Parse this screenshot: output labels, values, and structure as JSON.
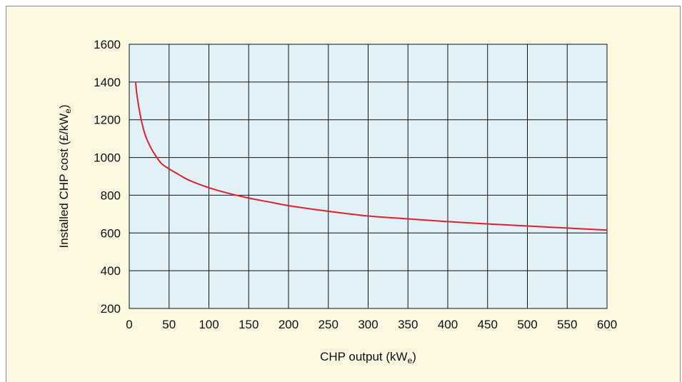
{
  "colors": {
    "panel_background": "#fdf8e1",
    "plot_background": "#e0f1f8",
    "grid": "#111111",
    "curve": "#e0202a"
  },
  "chart_data": {
    "type": "line",
    "xlabel": {
      "text": "CHP output (kW",
      "sub": "e",
      "suffix": ")"
    },
    "ylabel": {
      "text": "Installed CHP cost (£/kW",
      "sub": "e",
      "suffix": ")"
    },
    "xlim": [
      0,
      600
    ],
    "ylim": [
      200,
      1600
    ],
    "x_ticks": [
      "0",
      "50",
      "100",
      "150",
      "200",
      "250",
      "300",
      "350",
      "400",
      "450",
      "500",
      "550",
      "600"
    ],
    "y_ticks": [
      "200",
      "400",
      "600",
      "800",
      "1000",
      "1200",
      "1400",
      "1600"
    ],
    "grid": true,
    "series": [
      {
        "x": [
          8,
          10,
          15,
          20,
          25,
          30,
          40,
          50,
          60,
          75,
          100,
          125,
          150,
          175,
          200,
          250,
          300,
          350,
          400,
          450,
          500,
          550,
          600
        ],
        "y": [
          1400,
          1320,
          1200,
          1120,
          1070,
          1030,
          970,
          940,
          915,
          880,
          840,
          810,
          785,
          765,
          745,
          715,
          690,
          675,
          660,
          648,
          637,
          626,
          615
        ]
      }
    ]
  }
}
